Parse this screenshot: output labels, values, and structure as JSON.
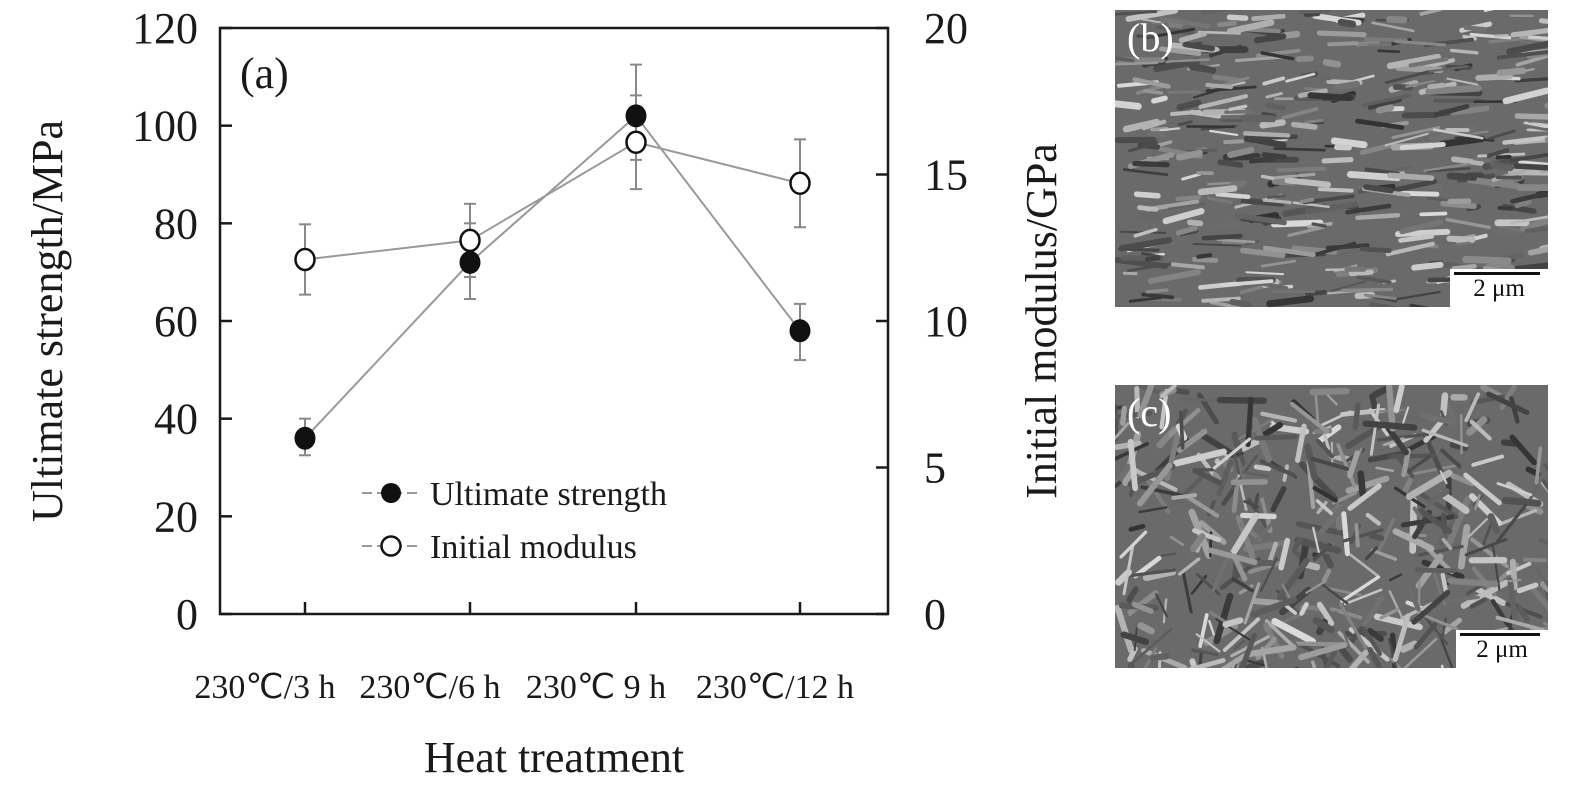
{
  "chart_data": {
    "type": "line",
    "panel_label": "(a)",
    "xlabel": "Heat treatment",
    "ylabel": "Ultimate strength/MPa",
    "y2label": "Initial modulus/GPa",
    "categories": [
      "230℃/3 h",
      "230℃/6 h",
      "230℃ 9 h",
      "230℃/12 h"
    ],
    "ylim": [
      0,
      120
    ],
    "yticks": [
      0,
      20,
      40,
      60,
      80,
      100,
      120
    ],
    "y2lim": [
      0,
      20
    ],
    "y2ticks": [
      0,
      5,
      10,
      15,
      20
    ],
    "grid": false,
    "legend_position": "lower-center",
    "series": [
      {
        "name": "Ultimate strength",
        "axis": "left",
        "marker": "filled-circle",
        "values": [
          36,
          72,
          102,
          58
        ],
        "err_low": [
          32.5,
          64.5,
          93,
          52
        ],
        "err_high": [
          40,
          80,
          112.5,
          63.5
        ]
      },
      {
        "name": "Initial modulus",
        "axis": "right",
        "marker": "open-circle",
        "values": [
          12.1,
          12.75,
          16.1,
          14.7
        ],
        "err_low": [
          10.9,
          11.5,
          14.5,
          13.2
        ],
        "err_high": [
          13.3,
          14.0,
          17.7,
          16.2
        ]
      }
    ]
  },
  "images": [
    {
      "label": "(b)",
      "scale_bar": "2 μm"
    },
    {
      "label": "(c)",
      "scale_bar": "2 μm"
    }
  ]
}
